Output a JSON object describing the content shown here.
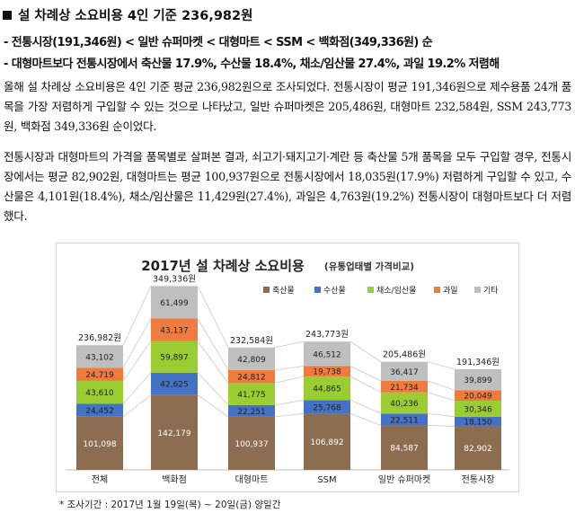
{
  "title": "설 차례상 소요비용 4인 기준 236,982원",
  "bullets": [
    "- 전통시장(191,346원) < 일반 슈퍼마켓 < 대형마트 < SSM < 백화점(349,336원) 순",
    "- 대형마트보다 전통시장에서 축산물 17.9%, 수산물 18.4%, 채소/임산물 27.4%, 과일 19.2% 저렴해"
  ],
  "paragraphs": [
    " 올해 설 차례상 소요비용은 4인 기준 평균 236,982원으로 조사되었다. 전통시장이 평균 191,346원으로 제수용품 24개 품목을 가장 저렴하게 구입할 수 있는 것으로 나타났고, 일반 슈퍼마켓은 205,486원, 대형마트 232,584원, SSM 243,773원, 백화점 349,336원 순이었다.",
    " 전통시장과 대형마트의 가격을 품목별로 살펴본 결과, 쇠고기·돼지고기·계란 등 축산물 5개 품목을 모두 구입할 경우, 전통시장에서는 평균 82,902원, 대형마트는 평균 100,937원으로 전통시장에서 18,035원(17.9%) 저렴하게 구입할 수 있고, 수산물은 4,101원(18.4%), 채소/임산물은 11,429원(27.4%), 과일은 4,763원(19.2%) 전통시장이 대형마트보다 더 저렴했다."
  ],
  "chart_data": {
    "type": "bar",
    "stacked": true,
    "title": "2017년 설 차례상 소요비용",
    "subtitle": "(유통업태별 가격비교)",
    "categories": [
      "전체",
      "백화점",
      "대형마트",
      "SSM",
      "일반 슈퍼마켓",
      "전통시장"
    ],
    "series": [
      {
        "name": "축산물",
        "color": "#8c6d4f",
        "values": [
          101098,
          142179,
          100937,
          106892,
          84587,
          82902
        ]
      },
      {
        "name": "수산물",
        "color": "#4472c4",
        "values": [
          24452,
          42625,
          22251,
          25768,
          22511,
          18150
        ]
      },
      {
        "name": "채소/임산물",
        "color": "#9acd32",
        "values": [
          43610,
          59897,
          41775,
          44865,
          40236,
          30346
        ]
      },
      {
        "name": "과일",
        "color": "#f07b3f",
        "values": [
          24719,
          43137,
          24812,
          19738,
          21734,
          20049
        ]
      },
      {
        "name": "기타",
        "color": "#bfbfbf",
        "values": [
          43102,
          61499,
          42809,
          46512,
          36417,
          39899
        ]
      }
    ],
    "totals": [
      "236,982원",
      "349,336원",
      "232,584원",
      "243,773원",
      "205,486원",
      "191,346원"
    ],
    "legend_position": "top-right",
    "grid": false
  },
  "footnote": "* 조사기간 : 2017년 1월 19일(목) ~ 20일(금) 양일간"
}
